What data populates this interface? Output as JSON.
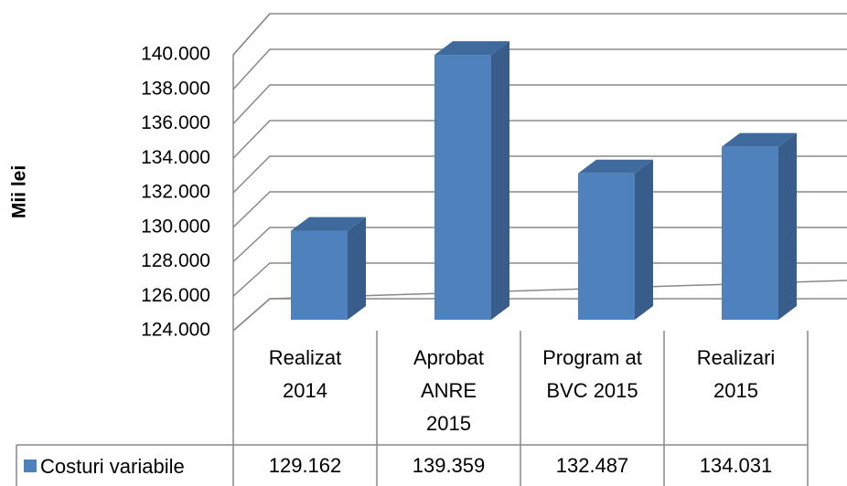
{
  "chart_data": {
    "type": "bar3d",
    "y_label": "Mii lei",
    "categories": [
      "Realizat 2014",
      "Aprobat ANRE 2015",
      "Program at BVC 2015",
      "Realizari 2015"
    ],
    "series": [
      {
        "name": "Costuri variabile",
        "color": "#4f81bd",
        "values": [
          129162,
          139359,
          132487,
          134031
        ],
        "value_labels": [
          "129.162",
          "139.359",
          "132.487",
          "134.031"
        ]
      }
    ],
    "ylim": [
      124000,
      140000
    ],
    "yticks": [
      {
        "value": 124000,
        "label": "124.000"
      },
      {
        "value": 126000,
        "label": "126.000"
      },
      {
        "value": 128000,
        "label": "128.000"
      },
      {
        "value": 130000,
        "label": "130.000"
      },
      {
        "value": 132000,
        "label": "132.000"
      },
      {
        "value": 134000,
        "label": "134.000"
      },
      {
        "value": 136000,
        "label": "136.000"
      },
      {
        "value": 138000,
        "label": "138.000"
      },
      {
        "value": 140000,
        "label": "140.000"
      }
    ],
    "grid": true
  }
}
